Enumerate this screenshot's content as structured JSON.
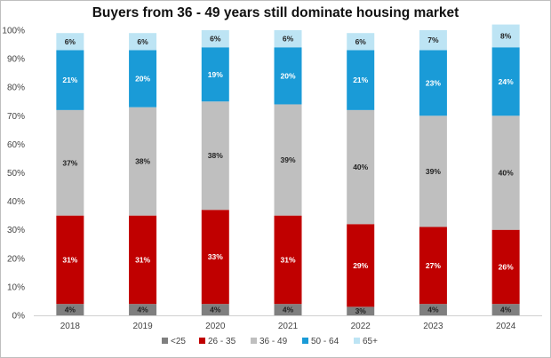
{
  "chart_data": {
    "type": "bar",
    "stacked": true,
    "title": "Buyers from 36 - 49 years still dominate housing market",
    "categories": [
      "2018",
      "2019",
      "2020",
      "2021",
      "2022",
      "2023",
      "2024"
    ],
    "ylim": [
      0,
      100
    ],
    "yticks": [
      "0%",
      "10%",
      "20%",
      "30%",
      "40%",
      "50%",
      "60%",
      "70%",
      "80%",
      "90%",
      "100%"
    ],
    "series": [
      {
        "name": "<25",
        "color": "#7f7f7f",
        "values": [
          4,
          4,
          4,
          4,
          3,
          4,
          4
        ]
      },
      {
        "name": "26 - 35",
        "color": "#c00000",
        "values": [
          31,
          31,
          33,
          31,
          29,
          27,
          26
        ]
      },
      {
        "name": "36 - 49",
        "color": "#bfbfbf",
        "values": [
          37,
          38,
          38,
          39,
          40,
          39,
          40
        ]
      },
      {
        "name": "50 - 64",
        "color": "#1a9bd7",
        "values": [
          21,
          20,
          19,
          20,
          21,
          23,
          24
        ]
      },
      {
        "name": "65+",
        "color": "#bde4f4",
        "values": [
          6,
          6,
          6,
          6,
          6,
          7,
          8
        ]
      }
    ],
    "legend_position": "bottom"
  }
}
